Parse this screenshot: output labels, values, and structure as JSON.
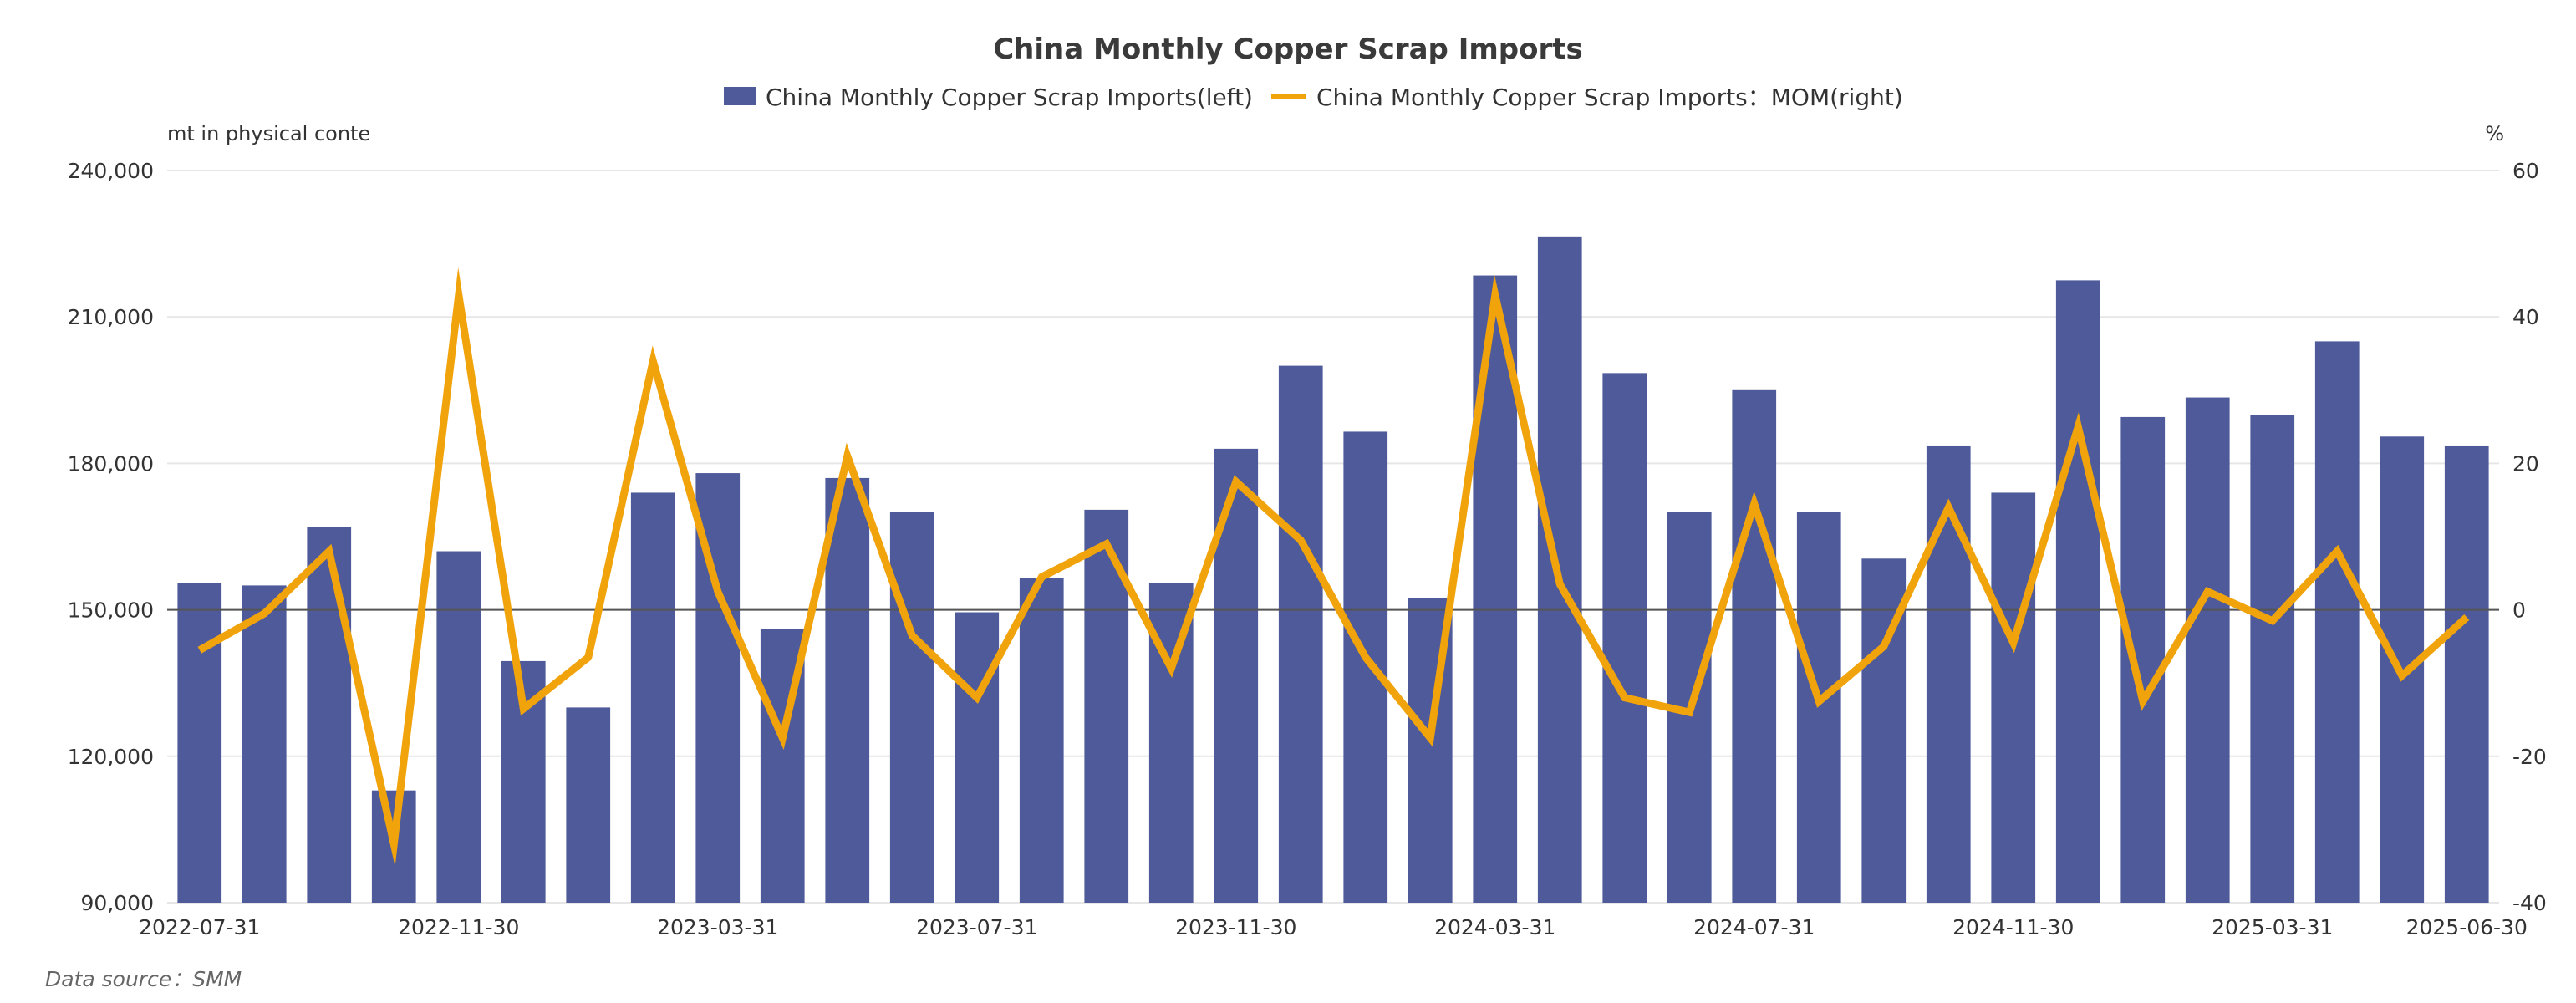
{
  "chart_data": {
    "type": "bar",
    "title": "China Monthly Copper Scrap Imports",
    "left_unit": "mt in physical conte",
    "right_unit": "%",
    "source": "Data source：SMM",
    "categories": [
      "2022-07-31",
      "2022-08-31",
      "2022-09-30",
      "2022-10-31",
      "2022-11-30",
      "2022-12-31",
      "2023-01-31",
      "2023-02-28",
      "2023-03-31",
      "2023-04-30",
      "2023-05-31",
      "2023-06-30",
      "2023-07-31",
      "2023-08-31",
      "2023-09-30",
      "2023-10-31",
      "2023-11-30",
      "2023-12-31",
      "2024-01-31",
      "2024-02-29",
      "2024-03-31",
      "2024-04-30",
      "2024-05-31",
      "2024-06-30",
      "2024-07-31",
      "2024-08-31",
      "2024-09-30",
      "2024-10-31",
      "2024-11-30",
      "2024-12-31",
      "2025-01-31",
      "2025-02-28",
      "2025-03-31",
      "2025-04-30",
      "2025-05-31",
      "2025-06-30"
    ],
    "x_tick_labels": [
      "2022-07-31",
      "2022-11-30",
      "2023-03-31",
      "2023-07-31",
      "2023-11-30",
      "2024-03-31",
      "2024-07-31",
      "2024-11-30",
      "2025-03-31",
      "2025-06-30"
    ],
    "series": [
      {
        "name": "China Monthly Copper Scrap Imports(left)",
        "type": "bar",
        "axis": "left",
        "color": "#4e5a9a",
        "values": [
          155500,
          155000,
          167000,
          113000,
          162000,
          139500,
          130000,
          174000,
          178000,
          146000,
          177000,
          170000,
          149500,
          156500,
          170500,
          155500,
          183000,
          200000,
          186500,
          152500,
          218500,
          226500,
          198500,
          170000,
          195000,
          170000,
          160500,
          183500,
          174000,
          217500,
          189500,
          193500,
          190000,
          205000,
          185500,
          183500
        ]
      },
      {
        "name": "China Monthly Copper Scrap Imports：MOM(right)",
        "type": "line",
        "axis": "right",
        "color": "#f0a30a",
        "values": [
          -5.5,
          -0.5,
          8,
          -32,
          43,
          -13.5,
          -6.5,
          34,
          2.5,
          -17.5,
          21,
          -3.5,
          -12,
          4.5,
          9,
          -8,
          17.5,
          9.5,
          -6.5,
          -17.5,
          43,
          3.5,
          -12,
          -14,
          14.5,
          -12.5,
          -5,
          14,
          -4.5,
          25,
          -12.5,
          2.5,
          -1.5,
          8,
          -9,
          -1
        ]
      }
    ],
    "left_axis": {
      "ylim": [
        90000,
        240000
      ],
      "ticks": [
        "240,000",
        "210,000",
        "180,000",
        "150,000",
        "120,000",
        "90,000"
      ]
    },
    "right_axis": {
      "ylim": [
        -40,
        60
      ],
      "ticks": [
        "60",
        "40",
        "20",
        "0",
        "-20",
        "-40"
      ]
    },
    "grid": true,
    "legend_position": "top-center"
  }
}
